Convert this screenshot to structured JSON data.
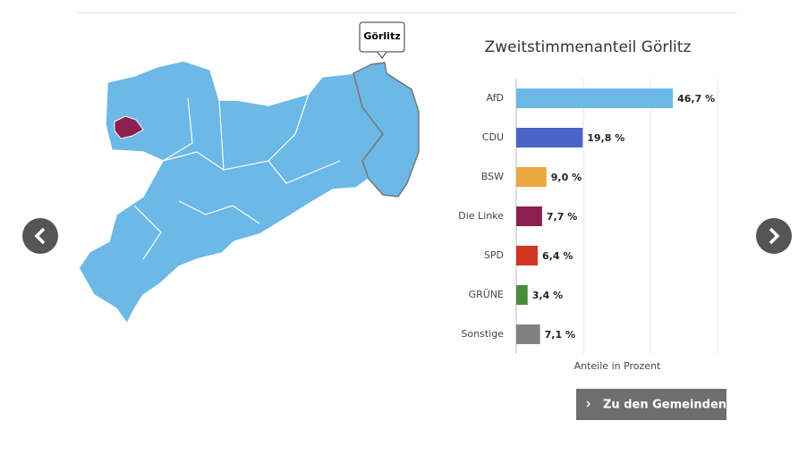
{
  "tooltip": "Görlitz",
  "button": "Zu den Gemeinden",
  "chart_data": {
    "type": "bar",
    "orientation": "horizontal",
    "title": "Zweitstimmenanteil Görlitz",
    "x_label": "Anteile in Prozent",
    "categories": [
      "AfD",
      "CDU",
      "BSW",
      "Die Linke",
      "SPD",
      "GRÜNE",
      "Sonstige"
    ],
    "values": [
      46.7,
      19.8,
      9.0,
      7.7,
      6.4,
      3.4,
      7.1
    ],
    "value_labels": [
      "46,7 %",
      "19,8 %",
      "9,0 %",
      "7,7 %",
      "6,4 %",
      "3,4 %",
      "7,1 %"
    ],
    "colors": [
      "#6cb8e6",
      "#4a63c8",
      "#e8a83e",
      "#8b1f4f",
      "#d0351f",
      "#4a8c3f",
      "#808080"
    ],
    "xlim": [
      0,
      60
    ],
    "xticks": [
      0,
      20,
      40,
      60
    ],
    "grid": true
  }
}
